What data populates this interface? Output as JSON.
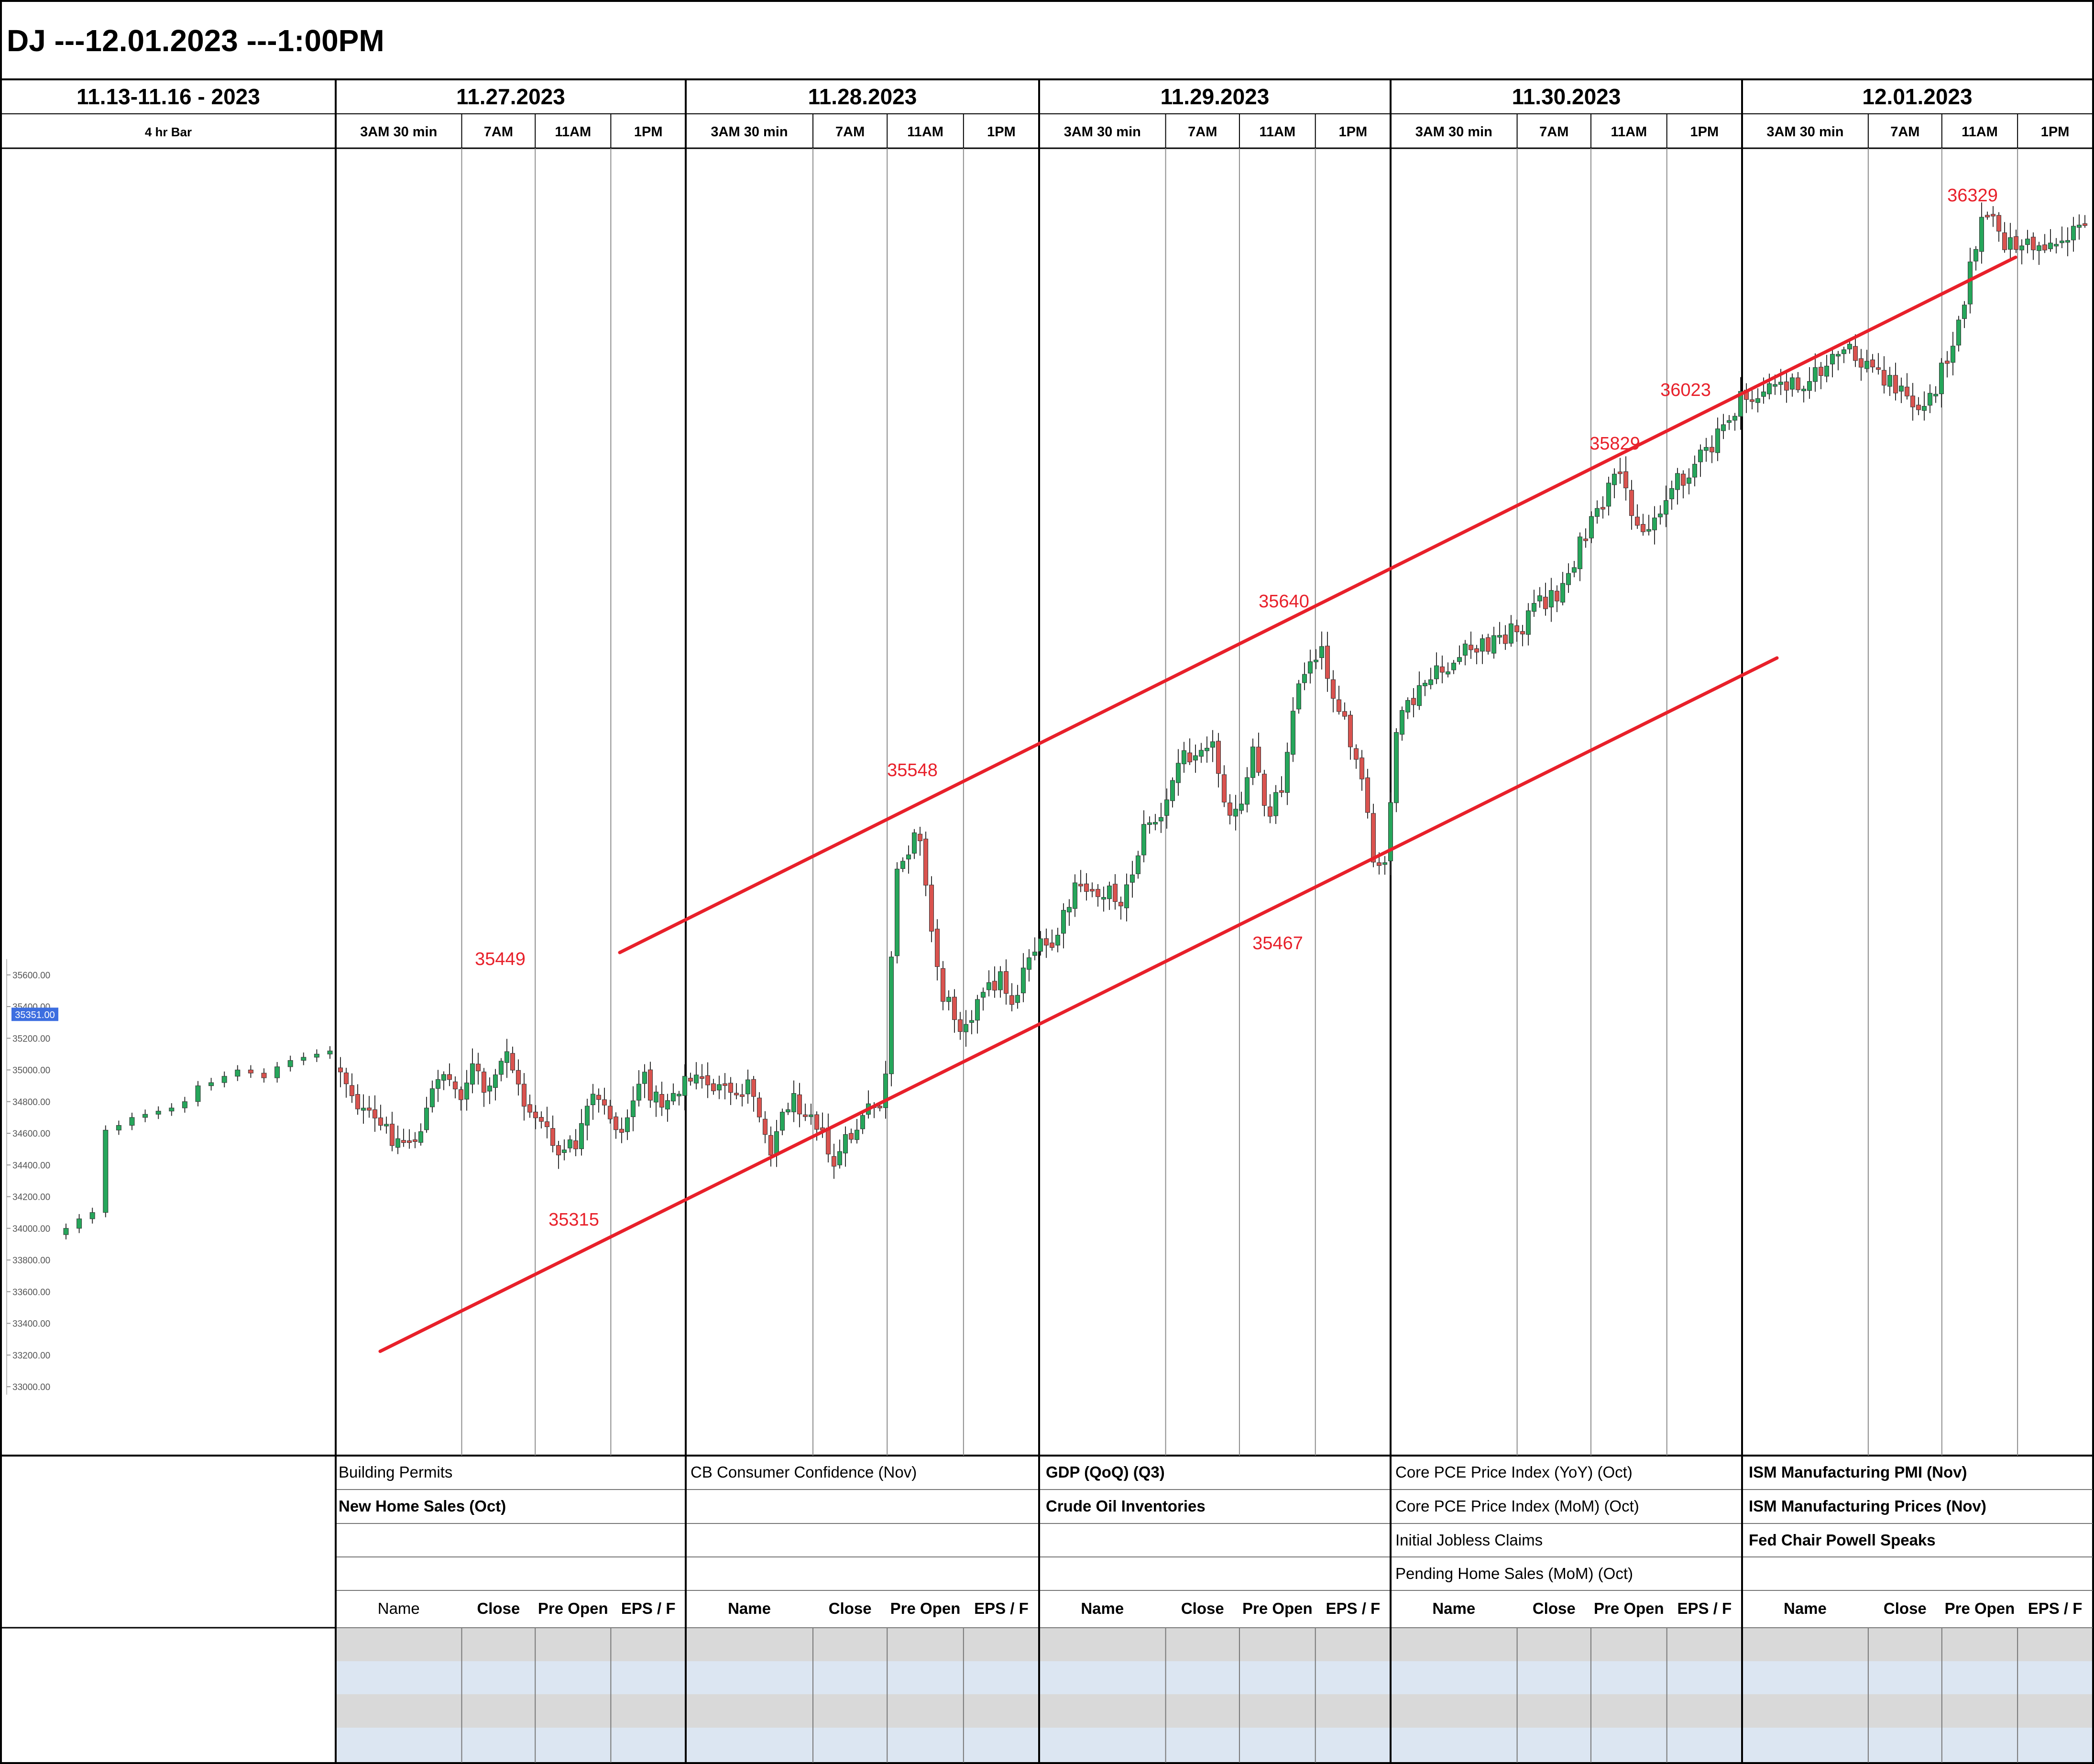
{
  "title": "DJ ---12.01.2023 ---1:00PM",
  "colors": {
    "up": "#26a65b",
    "down": "#d9534f",
    "channel": "#e8202a",
    "annotation": "#e8202a",
    "grid": "#8c8c8c",
    "row_gray": "#d9d9d9",
    "row_blue": "#dce6f2",
    "price_tag": "#3d6ee0"
  },
  "columns": [
    {
      "date": "11.13-11.16 - 2023",
      "subheaders": [
        "4 hr Bar"
      ]
    },
    {
      "date": "11.27.2023",
      "subheaders": [
        "3AM 30 min",
        "7AM",
        "11AM",
        "1PM"
      ]
    },
    {
      "date": "11.28.2023",
      "subheaders": [
        "3AM 30 min",
        "7AM",
        "11AM",
        "1PM"
      ]
    },
    {
      "date": "11.29.2023",
      "subheaders": [
        "3AM 30 min",
        "7AM",
        "11AM",
        "1PM"
      ]
    },
    {
      "date": "11.30.2023",
      "subheaders": [
        "3AM 30 min",
        "7AM",
        "11AM",
        "1PM"
      ]
    },
    {
      "date": "12.01.2023",
      "subheaders": [
        "3AM 30 min",
        "7AM",
        "11AM",
        "1PM"
      ]
    }
  ],
  "events": [
    {
      "day": 1,
      "row": 0,
      "text": "Building Permits",
      "bold": false
    },
    {
      "day": 1,
      "row": 1,
      "text": "New Home Sales (Oct)",
      "bold": true
    },
    {
      "day": 2,
      "row": 0,
      "text": "CB Consumer Confidence (Nov)",
      "bold": false
    },
    {
      "day": 3,
      "row": 0,
      "text": "GDP (QoQ) (Q3)",
      "bold": true
    },
    {
      "day": 3,
      "row": 1,
      "text": "Crude Oil Inventories",
      "bold": true
    },
    {
      "day": 4,
      "row": 0,
      "text": "Core PCE Price Index (YoY) (Oct)",
      "bold": false
    },
    {
      "day": 4,
      "row": 1,
      "text": "Core PCE Price Index (MoM) (Oct)",
      "bold": false
    },
    {
      "day": 4,
      "row": 2,
      "text": "Initial Jobless Claims",
      "bold": false
    },
    {
      "day": 4,
      "row": 3,
      "text": "Pending Home Sales (MoM) (Oct)",
      "bold": false
    },
    {
      "day": 5,
      "row": 0,
      "text": "ISM Manufacturing PMI (Nov)",
      "bold": true
    },
    {
      "day": 5,
      "row": 1,
      "text": "ISM Manufacturing Prices (Nov)",
      "bold": true
    },
    {
      "day": 5,
      "row": 2,
      "text": "Fed Chair Powell Speaks",
      "bold": true
    }
  ],
  "earnings_headers": [
    "Name",
    "Close",
    "Pre Open",
    "EPS / F"
  ],
  "chart_data": {
    "type": "candlestick",
    "yaxis_ticks": [
      33000,
      33200,
      33400,
      33600,
      33800,
      34000,
      34200,
      34400,
      34600,
      34800,
      35000,
      35200,
      35400,
      35600
    ],
    "current_price_label": "35351.00",
    "current_price": 35351,
    "weekly_closes_4hr": [
      34000,
      34060,
      34100,
      34620,
      34650,
      34700,
      34720,
      34740,
      34760,
      34800,
      34900,
      34920,
      34960,
      35000,
      34980,
      34950,
      35020,
      35060,
      35080,
      35100,
      35120
    ],
    "annotations": [
      {
        "label": "35449",
        "kind": "high"
      },
      {
        "label": "35315",
        "kind": "low"
      },
      {
        "label": "35548",
        "kind": "high"
      },
      {
        "label": "35640",
        "kind": "high"
      },
      {
        "label": "35467",
        "kind": "low"
      },
      {
        "label": "35829",
        "kind": "high"
      },
      {
        "label": "36023",
        "kind": "high"
      },
      {
        "label": "36329",
        "kind": "high"
      }
    ],
    "channel": "ascending",
    "grid": true
  }
}
